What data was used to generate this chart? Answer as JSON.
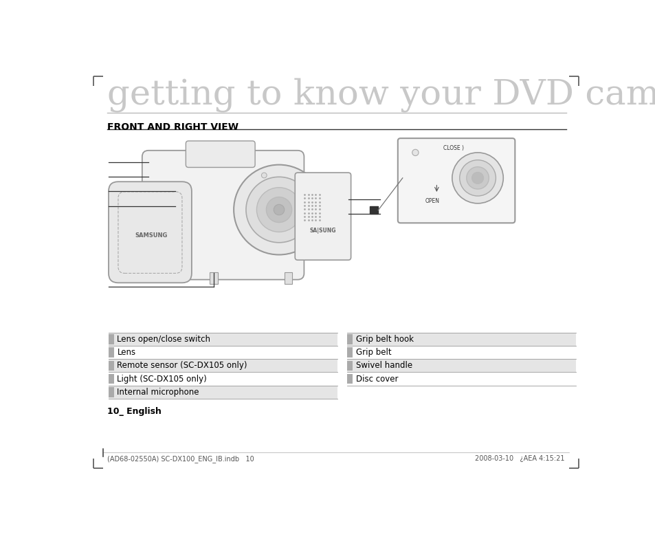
{
  "title": "getting to know your DVD camcorder",
  "section": "FRONT AND RIGHT VIEW",
  "left_items": [
    "Lens open/close switch",
    "Lens",
    "Remote sensor (SC-DX105 only)",
    "Light (SC-DX105 only)",
    "Internal microphone"
  ],
  "right_items": [
    "Grip belt hook",
    "Grip belt",
    "Swivel handle",
    "Disc cover"
  ],
  "page_label": "10_ English",
  "footer_left": "(AD68-02550A) SC-DX100_ENG_IB.indb   10",
  "footer_right": "2008-03-10   ¿AEA 4:15:21",
  "bg_color": "#ffffff",
  "text_color": "#000000",
  "title_color": "#c8c8c8",
  "section_color": "#000000",
  "table_line_color": "#999999",
  "table_bg_odd": "#e5e5e5",
  "table_bg_even": "#ffffff",
  "swatch_color": "#aaaaaa"
}
